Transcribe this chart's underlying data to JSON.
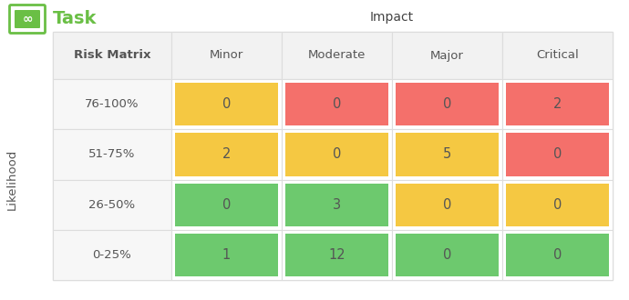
{
  "title": "Impact",
  "col_labels": [
    "Minor",
    "Moderate",
    "Major",
    "Critical"
  ],
  "row_labels": [
    "76-100%",
    "51-75%",
    "26-50%",
    "0-25%"
  ],
  "row_header": "Risk Matrix",
  "y_axis_label": "Likelihood",
  "values": [
    [
      0,
      0,
      0,
      2
    ],
    [
      2,
      0,
      5,
      0
    ],
    [
      0,
      3,
      0,
      0
    ],
    [
      1,
      12,
      0,
      0
    ]
  ],
  "cell_colors": [
    [
      "#F5C842",
      "#F4706B",
      "#F4706B",
      "#F4706B"
    ],
    [
      "#F5C842",
      "#F5C842",
      "#F5C842",
      "#F4706B"
    ],
    [
      "#6DC96E",
      "#6DC96E",
      "#F5C842",
      "#F5C842"
    ],
    [
      "#6DC96E",
      "#6DC96E",
      "#6DC96E",
      "#6DC96E"
    ]
  ],
  "bg_color": "#ffffff",
  "header_bg": "#F2F2F2",
  "row_label_bg": "#F7F7F7",
  "border_color": "#DDDDDD",
  "text_color": "#555555",
  "cell_text_color": "#555555",
  "title_color": "#444444",
  "logo_green": "#6abf45",
  "logo_text": "Task",
  "figsize": [
    6.9,
    3.3
  ],
  "dpi": 100
}
